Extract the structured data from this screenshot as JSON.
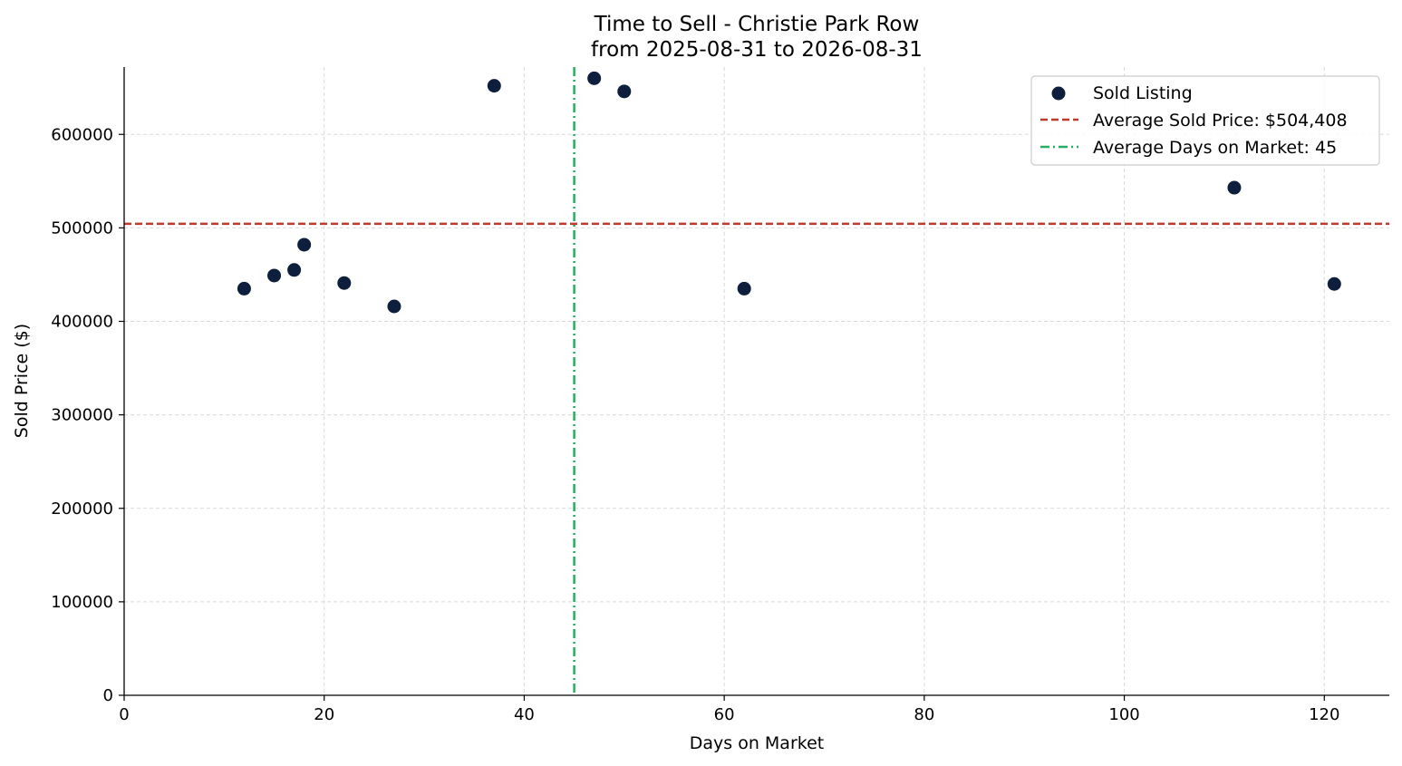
{
  "chart_data": {
    "type": "scatter",
    "title": "Time to Sell - Christie Park Row",
    "subtitle": "from 2025-08-31 to 2026-08-31",
    "xlabel": "Days on Market",
    "ylabel": "Sold Price ($)",
    "xlim": [
      0,
      126.5
    ],
    "ylim": [
      0,
      672000
    ],
    "x_ticks": [
      0,
      20,
      40,
      60,
      80,
      100,
      120
    ],
    "y_ticks": [
      0,
      100000,
      200000,
      300000,
      400000,
      500000,
      600000
    ],
    "grid": true,
    "legend_position": "top-right",
    "series": [
      {
        "name": "Sold Listing",
        "color": "#0d1f3c",
        "points": [
          {
            "x": 12,
            "y": 435000
          },
          {
            "x": 15,
            "y": 449000
          },
          {
            "x": 17,
            "y": 455000
          },
          {
            "x": 18,
            "y": 482000
          },
          {
            "x": 22,
            "y": 441000
          },
          {
            "x": 27,
            "y": 416000
          },
          {
            "x": 37,
            "y": 652000
          },
          {
            "x": 47,
            "y": 660000
          },
          {
            "x": 50,
            "y": 646000
          },
          {
            "x": 62,
            "y": 435000
          },
          {
            "x": 111,
            "y": 543000
          },
          {
            "x": 121,
            "y": 440000
          }
        ]
      }
    ],
    "reference_lines": [
      {
        "orientation": "horizontal",
        "value": 504408,
        "label": "Average Sold Price: $504,408",
        "color": "#c0392b",
        "style": "dashed"
      },
      {
        "orientation": "vertical",
        "value": 45,
        "label": "Average Days on Market: 45",
        "color": "#27ae60",
        "style": "dashdot"
      }
    ]
  }
}
